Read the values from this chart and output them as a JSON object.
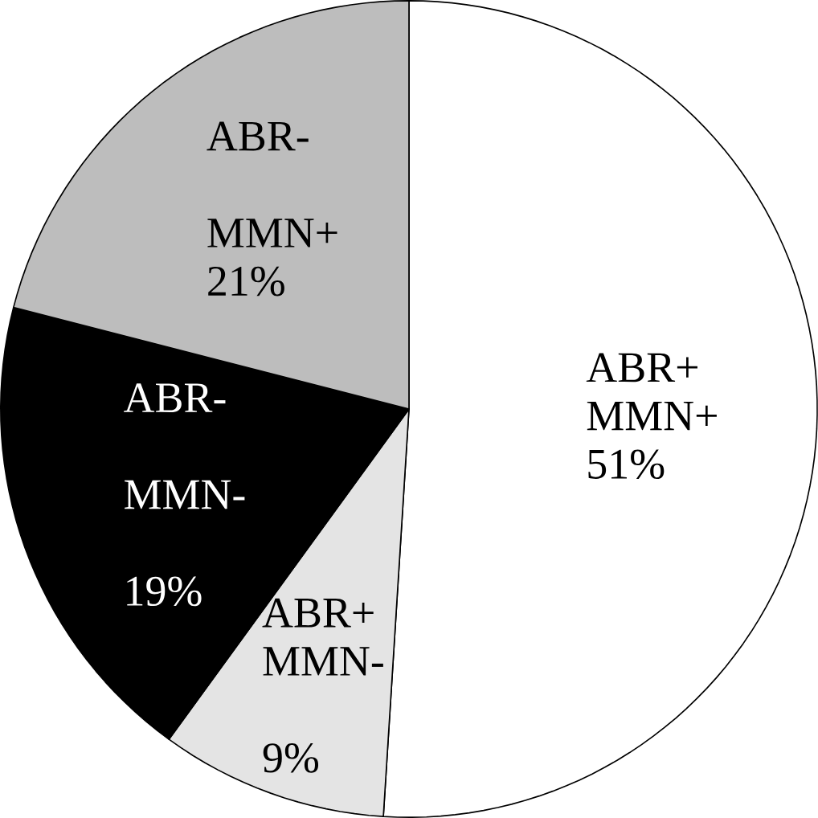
{
  "chart_data": {
    "type": "pie",
    "categories": [
      "ABR+ MMN+",
      "ABR+ MMN-",
      "ABR- MMN-",
      "ABR- MMN+"
    ],
    "values": [
      51,
      9,
      19,
      21
    ],
    "value_labels": [
      "51%",
      "9%",
      "19%",
      "21%"
    ],
    "colors": [
      "#ffffff",
      "#e4e4e4",
      "#000000",
      "#bdbdbd"
    ]
  }
}
